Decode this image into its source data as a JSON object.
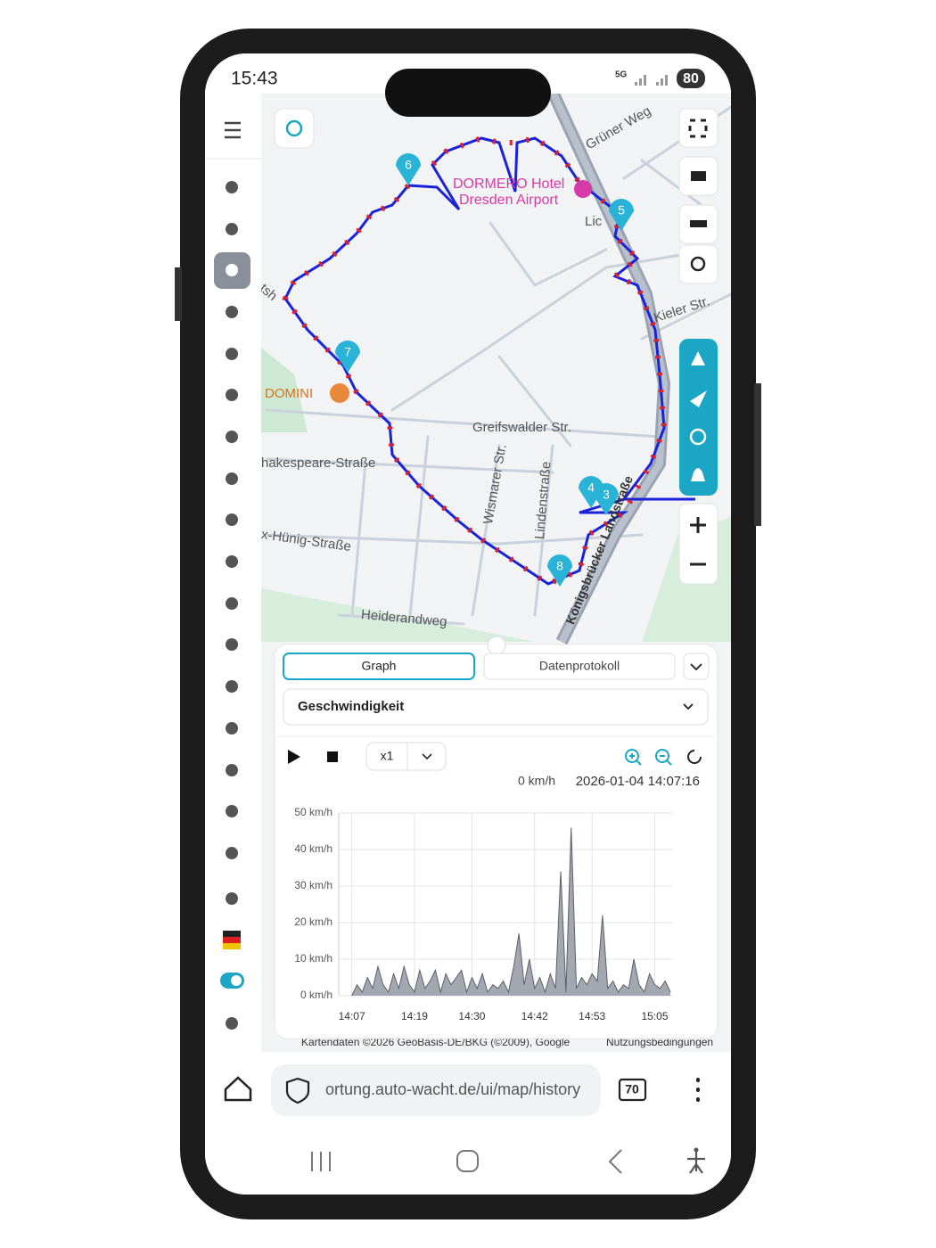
{
  "status_bar": {
    "time": "15:43",
    "network": "5G",
    "battery": "80"
  },
  "map": {
    "labels": [
      "Grüner Weg",
      "DORMERO Hotel",
      "Dresden Airport",
      "Lic",
      "Kieler Str.",
      "DOMINI",
      "Greifswalder Str.",
      "hakespeare-Straße",
      "Wismarer Str.",
      "Lindenstraße",
      "x-Hünig-Straße",
      "Heiderandweg",
      "Königsbrücker Landstraße",
      "tsh"
    ],
    "markers": [
      "6",
      "5",
      "7",
      "4",
      "3",
      "8"
    ],
    "attribution": "Kartendaten ©2026 GeoBasis-DE/BKG (©2009), Google",
    "terms": "Nutzungsbedingungen"
  },
  "panel": {
    "tabs": [
      "Graph",
      "Datenprotokoll"
    ],
    "selector": "Geschwindigkeit",
    "playback_speed": "x1",
    "readout_speed": "0 km/h",
    "readout_time": "2026-01-04 14:07:16"
  },
  "chart": {
    "type": "area",
    "color": "#a3a7b0",
    "x": [
      7,
      8,
      9,
      10,
      11,
      12,
      13,
      14,
      15,
      16,
      17,
      18,
      19,
      20,
      21,
      22,
      23,
      24,
      25,
      26,
      27,
      28,
      29,
      30,
      31,
      32,
      33,
      34,
      35,
      36,
      37,
      38,
      39,
      40,
      41,
      42,
      43,
      44,
      45,
      46,
      47,
      48,
      49,
      50,
      51,
      52,
      53,
      54,
      55,
      56,
      57,
      58,
      59,
      60,
      61,
      62,
      63,
      64,
      65,
      66,
      67,
      68
    ],
    "values": [
      0,
      3,
      1,
      5,
      2,
      8,
      3,
      1,
      6,
      2,
      8,
      3,
      1,
      7,
      2,
      4,
      7,
      1,
      6,
      3,
      5,
      7,
      1,
      5,
      2,
      6,
      1,
      3,
      2,
      4,
      1,
      8,
      17,
      3,
      10,
      2,
      5,
      1,
      6,
      2,
      34,
      1,
      46,
      2,
      5,
      3,
      6,
      4,
      22,
      2,
      4,
      1,
      3,
      2,
      10,
      3,
      1,
      6,
      3,
      2,
      4,
      1
    ],
    "xlim": [
      4.5,
      68.5
    ],
    "ylim": [
      0,
      50
    ],
    "xticks": [
      {
        "value": 7,
        "label": "14:07"
      },
      {
        "value": 19,
        "label": "14:19"
      },
      {
        "value": 30,
        "label": "14:30"
      },
      {
        "value": 42,
        "label": "14:42"
      },
      {
        "value": 53,
        "label": "14:53"
      },
      {
        "value": 65,
        "label": "15:05"
      }
    ],
    "yticks": [
      {
        "value": 0,
        "label": "0 km/h"
      },
      {
        "value": 10,
        "label": "10 km/h"
      },
      {
        "value": 20,
        "label": "20 km/h"
      },
      {
        "value": 30,
        "label": "30 km/h"
      },
      {
        "value": 40,
        "label": "40 km/h"
      },
      {
        "value": 50,
        "label": "50 km/h"
      }
    ],
    "grid": true
  },
  "browser": {
    "url": "ortung.auto-wacht.de/ui/map/history",
    "tab_count": "70"
  }
}
